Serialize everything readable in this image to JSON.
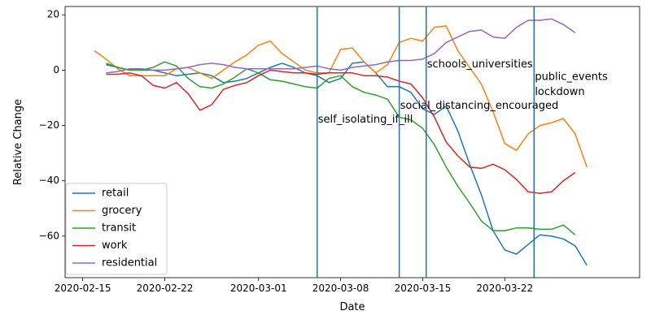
{
  "chart_data": {
    "type": "line",
    "title": "",
    "xlabel": "Date",
    "ylabel": "Relative Change",
    "x_start": "2020-02-16",
    "xlim": [
      -1.5,
      47.5
    ],
    "ylim": [
      -75,
      23
    ],
    "x_ticks": [
      {
        "day": 0,
        "label": "2020-02-15"
      },
      {
        "day": 7,
        "label": "2020-02-22"
      },
      {
        "day": 15,
        "label": "2020-03-01"
      },
      {
        "day": 22,
        "label": "2020-03-08"
      },
      {
        "day": 29,
        "label": "2020-03-15"
      },
      {
        "day": 36,
        "label": "2020-03-22"
      }
    ],
    "y_ticks": [
      20,
      0,
      -20,
      -40,
      -60
    ],
    "series": [
      {
        "name": "retail",
        "color": "#1f77b4",
        "start": 2,
        "values": [
          2,
          1,
          0,
          0,
          0,
          -1,
          -2,
          -1.5,
          -1,
          -2,
          -4.5,
          -4,
          -3,
          -1,
          1,
          2.5,
          1,
          -1,
          -2,
          -4.5,
          -3,
          2.5,
          3,
          -1,
          -6,
          -6,
          -8,
          -14,
          -16,
          -13,
          -22,
          -34,
          -45,
          -58,
          -65,
          -66.5,
          -63,
          -59.5,
          -60,
          -61,
          -63.5,
          -70.5
        ]
      },
      {
        "name": "grocery",
        "color": "#ff7f0e",
        "start": 1,
        "values": [
          7,
          4,
          0.5,
          -2,
          -2,
          -2,
          -2,
          0.5,
          1,
          -1,
          -3,
          0,
          3,
          5.5,
          9,
          10.5,
          6,
          3,
          0,
          -1,
          -1,
          7.5,
          8,
          3,
          -1,
          2,
          10,
          11.5,
          10.5,
          15.5,
          16,
          7,
          1,
          -5,
          -15,
          -26.5,
          -29,
          -23,
          -20,
          -19,
          -17.5,
          -23,
          -35
        ]
      },
      {
        "name": "transit",
        "color": "#2ca02c",
        "start": 2,
        "values": [
          2.5,
          1,
          0,
          0,
          1,
          3,
          1.5,
          -3,
          -6,
          -6.5,
          -5,
          -2.5,
          0.5,
          -1,
          -3.5,
          -4,
          -5,
          -6,
          -6.5,
          -3,
          -2,
          -6,
          -8,
          -9,
          -10.5,
          -17,
          -18,
          -21,
          -27,
          -35,
          -42,
          -48,
          -54.5,
          -58,
          -58,
          -57,
          -57,
          -57.5,
          -57.5,
          -56,
          -59.5
        ]
      },
      {
        "name": "work",
        "color": "#d62728",
        "start": 2,
        "values": [
          -1.5,
          -1.5,
          -1,
          -2,
          -5.5,
          -6.5,
          -4.5,
          -8.5,
          -14.5,
          -12.5,
          -7,
          -5.5,
          -4.5,
          -2,
          0,
          -0.5,
          -1,
          -1,
          -1.5,
          -1,
          -1,
          -1,
          -2,
          -2,
          -2.5,
          -4,
          -5,
          -10,
          -17,
          -26,
          -31,
          -35,
          -35.5,
          -34,
          -36,
          -39.5,
          -44,
          -44.5,
          -44,
          -40,
          -37
        ]
      },
      {
        "name": "residential",
        "color": "#9467bd",
        "start": 2,
        "values": [
          -1,
          -0.5,
          0.5,
          0.5,
          0,
          0,
          0.5,
          1,
          2,
          2.5,
          2,
          1,
          0.5,
          0.5,
          0.5,
          0.5,
          0.5,
          1,
          1.5,
          0.5,
          0,
          1,
          1.5,
          2,
          3,
          3.5,
          3.5,
          4,
          6,
          10,
          12,
          14,
          14.5,
          12,
          11.5,
          15.5,
          18,
          18,
          18.5,
          16.5,
          13.5
        ]
      }
    ],
    "vlines": [
      {
        "day": 20,
        "label": "self_isolating_if_ill",
        "label_y": -18
      },
      {
        "day": 27,
        "label": "social_distancing_encouraged",
        "label_y": -13
      },
      {
        "day": 29.3,
        "label": "schools_universities",
        "label_y": 2
      },
      {
        "day": 38.5,
        "label": "public_events",
        "label_y": -2.5
      },
      {
        "day": 38.5,
        "label": "lockdown",
        "label_y": -8
      }
    ],
    "legend": {
      "position": "lower-left"
    },
    "grid": false
  }
}
